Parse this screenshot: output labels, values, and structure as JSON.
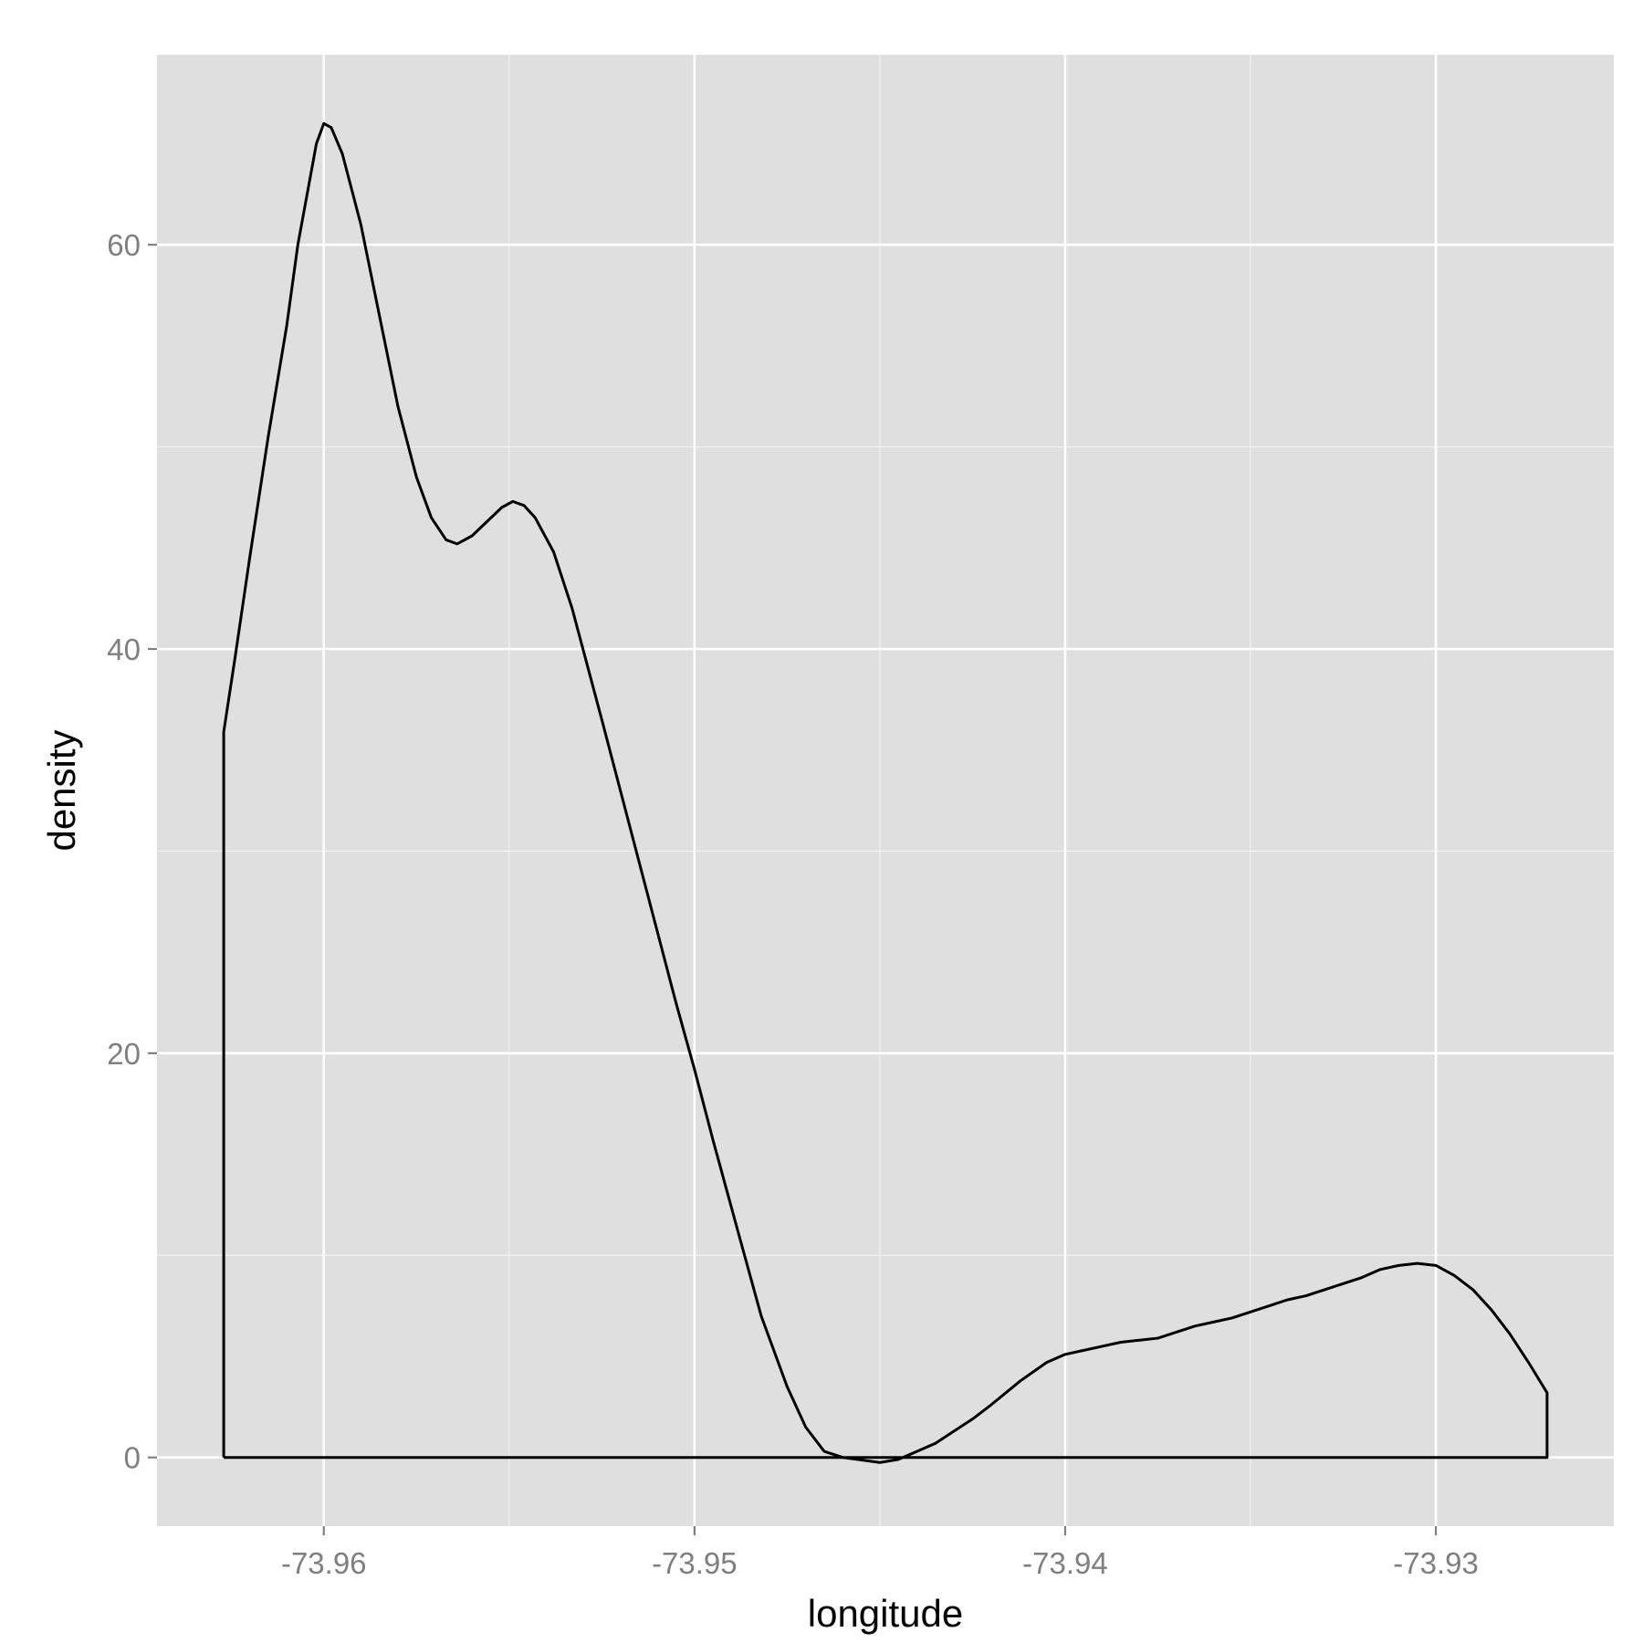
{
  "chart_data": {
    "type": "area",
    "title": "",
    "xlabel": "longitude",
    "ylabel": "density",
    "xlim": [
      -73.9645,
      -73.9252
    ],
    "ylim": [
      -3.4,
      69.4
    ],
    "x_ticks": [
      {
        "value": -73.96,
        "label": "-73.96"
      },
      {
        "value": -73.95,
        "label": "-73.95"
      },
      {
        "value": -73.94,
        "label": "-73.94"
      },
      {
        "value": -73.93,
        "label": "-73.93"
      }
    ],
    "y_ticks": [
      {
        "value": 0,
        "label": "0"
      },
      {
        "value": 20,
        "label": "20"
      },
      {
        "value": 40,
        "label": "40"
      },
      {
        "value": 60,
        "label": "60"
      }
    ],
    "x_minor_gridlines": [
      -73.955,
      -73.945,
      -73.935
    ],
    "y_minor_gridlines": [
      10,
      30,
      50
    ],
    "grid": true,
    "colors": {
      "panel_background": "#dfdfdf",
      "grid_major": "#ffffff",
      "grid_minor": "#f2f2f2",
      "line": "#000000",
      "fill": "none"
    },
    "series": [
      {
        "x": [
          -73.9627,
          -73.9627,
          -73.9624,
          -73.962,
          -73.9615,
          -73.961,
          -73.9607,
          -73.9604,
          -73.9602,
          -73.96,
          -73.9598,
          -73.9595,
          -73.959,
          -73.9585,
          -73.958,
          -73.9575,
          -73.9571,
          -73.9567,
          -73.9564,
          -73.956,
          -73.9556,
          -73.9552,
          -73.9549,
          -73.9546,
          -73.9543,
          -73.9538,
          -73.9533,
          -73.9525,
          -73.9515,
          -73.9505,
          -73.95,
          -73.9495,
          -73.9488,
          -73.9482,
          -73.9475,
          -73.947,
          -73.9465,
          -73.946,
          -73.9456,
          -73.945,
          -73.9445,
          -73.944,
          -73.9435,
          -73.943,
          -73.9425,
          -73.942,
          -73.9412,
          -73.9405,
          -73.94,
          -73.9395,
          -73.939,
          -73.9385,
          -73.938,
          -73.9375,
          -73.937,
          -73.9365,
          -73.936,
          -73.9355,
          -73.935,
          -73.9345,
          -73.934,
          -73.9335,
          -73.933,
          -73.9325,
          -73.932,
          -73.9315,
          -73.931,
          -73.9305,
          -73.93,
          -73.9295,
          -73.929,
          -73.9285,
          -73.928,
          -73.9275,
          -73.927,
          -73.927,
          -73.9627
        ],
        "y": [
          0,
          35.9,
          39.5,
          44.5,
          50.5,
          56.0,
          60.0,
          63.0,
          65.0,
          66.0,
          65.8,
          64.5,
          61.0,
          56.5,
          52.0,
          48.5,
          46.5,
          45.4,
          45.2,
          45.6,
          46.3,
          47.0,
          47.3,
          47.1,
          46.5,
          44.8,
          42.0,
          36.5,
          29.5,
          22.5,
          19.2,
          15.7,
          11.0,
          7.0,
          3.5,
          1.5,
          0.3,
          0.0,
          -0.1,
          -0.25,
          -0.1,
          0.3,
          0.7,
          1.3,
          1.9,
          2.6,
          3.8,
          4.7,
          5.1,
          5.3,
          5.5,
          5.7,
          5.8,
          5.9,
          6.2,
          6.5,
          6.7,
          6.9,
          7.2,
          7.5,
          7.8,
          8.0,
          8.3,
          8.6,
          8.9,
          9.3,
          9.5,
          9.6,
          9.5,
          9.0,
          8.3,
          7.3,
          6.1,
          4.7,
          3.2,
          0,
          0
        ],
        "y_note": ""
      }
    ]
  }
}
